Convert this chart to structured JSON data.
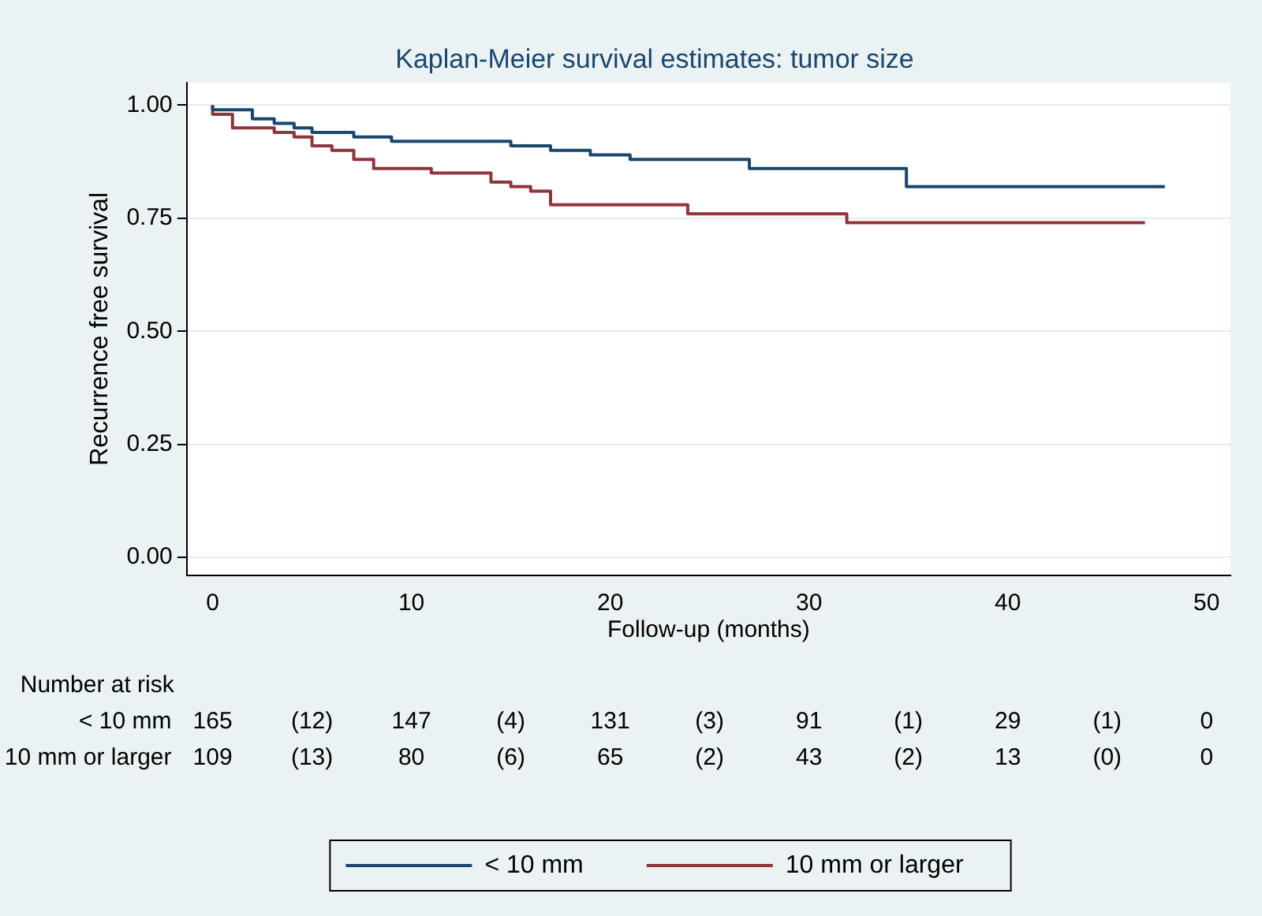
{
  "chart_data": {
    "type": "step",
    "title": "Kaplan-Meier survival estimates: tumor size",
    "xlabel": "Follow-up (months)",
    "ylabel": "Recurrence free survival",
    "xlim": [
      -1.3,
      51.2
    ],
    "xticks": [
      0,
      10,
      20,
      30,
      40,
      50
    ],
    "ylim": [
      -0.04,
      1.05
    ],
    "yticks": [
      {
        "value": 0,
        "label": "0.00"
      },
      {
        "value": 0.25,
        "label": "0.25"
      },
      {
        "value": 0.5,
        "label": "0.50"
      },
      {
        "value": 0.75,
        "label": "0.75"
      },
      {
        "value": 1,
        "label": "1.00"
      }
    ],
    "grid": "y",
    "legend": "bottom",
    "marker": "none",
    "line_style": "solid",
    "series": [
      {
        "name": "< 10 mm",
        "color": "#1a476f",
        "x": [
          0,
          2,
          3.1,
          4.1,
          5,
          7.1,
          8.1,
          9,
          15,
          17,
          19,
          21,
          23.9,
          27,
          34.9,
          40.9,
          47.9
        ],
        "values": [
          1,
          0.99,
          0.97,
          0.96,
          0.95,
          0.94,
          0.93,
          0.93,
          0.92,
          0.91,
          0.9,
          0.89,
          0.88,
          0.88,
          0.86,
          0.82,
          0.82
        ]
      },
      {
        "name": "10 mm or larger",
        "color": "#90353b",
        "x": [
          0,
          1,
          2,
          3.1,
          4.1,
          5,
          6,
          7.1,
          8.1,
          11,
          14,
          15,
          16,
          17,
          23.9,
          31.9,
          33,
          46.9
        ],
        "values": [
          1,
          0.98,
          0.95,
          0.95,
          0.94,
          0.93,
          0.91,
          0.9,
          0.88,
          0.86,
          0.85,
          0.83,
          0.82,
          0.81,
          0.78,
          0.76,
          0.74,
          0.74
        ]
      }
    ],
    "annotations": [
      "Number at risk",
      "< 10 mm",
      "165",
      "(12)",
      "147",
      "(4)",
      "131",
      "(3)",
      "91",
      "(1)",
      "29",
      "(1)",
      "0",
      "10 mm or larger",
      "109",
      "(13)",
      "80",
      "(6)",
      "65",
      "(2)",
      "43",
      "(2)",
      "13",
      "(0)",
      "0"
    ]
  }
}
